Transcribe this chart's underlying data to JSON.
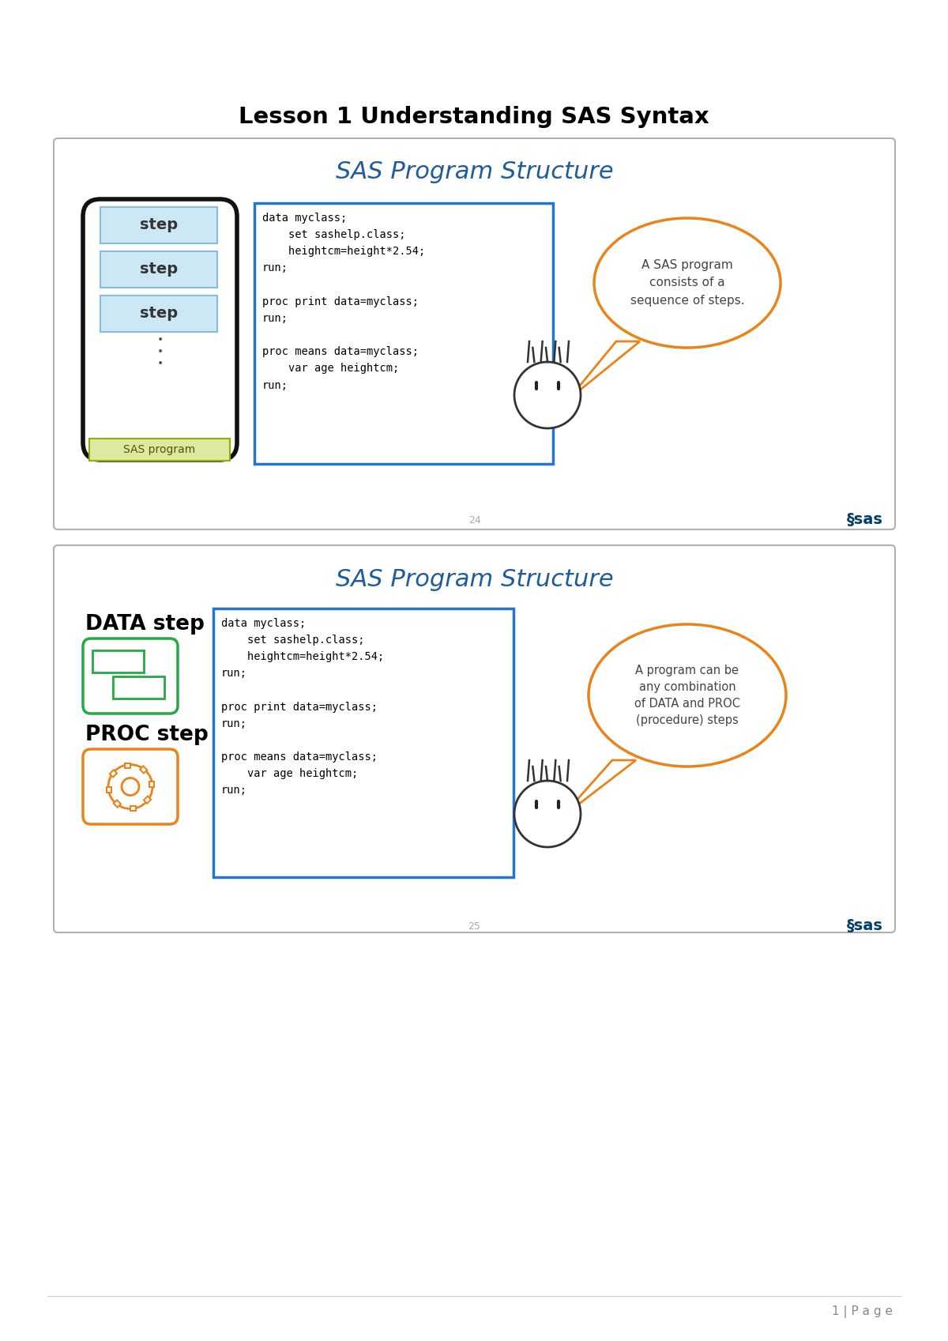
{
  "title": "Lesson 1 Understanding SAS Syntax",
  "slide1_title": "SAS Program Structure",
  "slide2_title": "SAS Program Structure",
  "code_block": "data myclass;\n    set sashelp.class;\n    heightcm=height*2.54;\nrun;\n\nproc print data=myclass;\nrun;\n\nproc means data=myclass;\n    var age heightcm;\nrun;",
  "bubble1_text": "A SAS program\nconsists of a\nsequence of steps.",
  "bubble2_text": "A program can be\nany combination\nof DATA and PROC\n(procedure) steps",
  "slide1_label": "SAS program",
  "slide2_label1": "DATA step",
  "slide2_label2": "PROC step",
  "page_text": "1 | P a g e",
  "slide1_number": "24",
  "slide2_number": "25",
  "bg_color": "#ffffff",
  "slide_bg": "#ffffff",
  "slide_border": "#b0b0b0",
  "title_color": "#000000",
  "slide_title_color": "#1f5c99",
  "code_box_color": "#2277cc",
  "code_text_color": "#000000",
  "step_box_fill": "#cde8f5",
  "step_box_border": "#88bbdd",
  "sas_prog_fill": "#dde8a0",
  "sas_prog_border": "#99aa00",
  "bubble_border": "#e8841a",
  "bubble_fill": "#ffffff",
  "bubble_text_color": "#444444",
  "outer_box_border": "#111111",
  "data_step_color": "#22aa44",
  "proc_step_color": "#e8841a",
  "sas_logo_color": "#003f6b",
  "page_number_color": "#aaaaaa",
  "footer_line_color": "#cccccc"
}
